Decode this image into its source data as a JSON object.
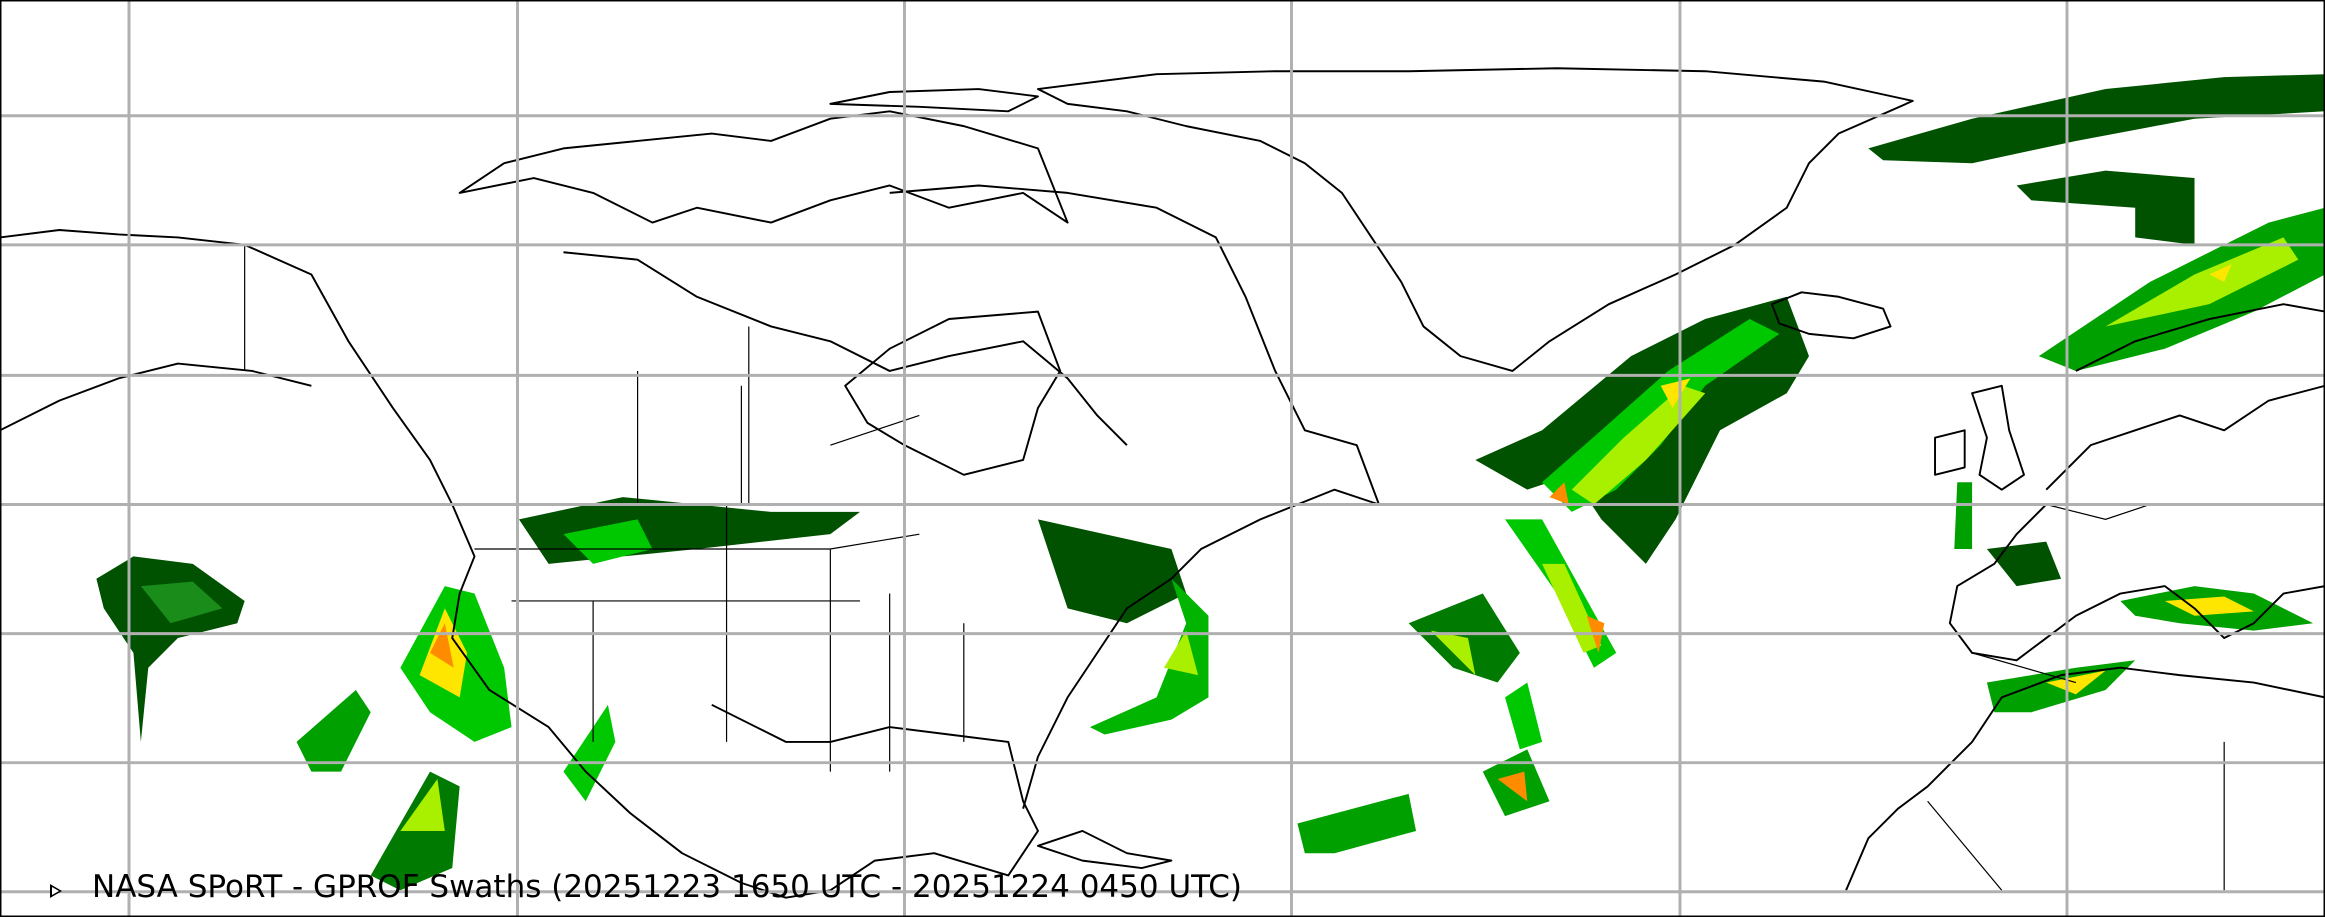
{
  "map": {
    "caption": "NASA SPoRT - GPROF Swaths (20251223 1650 UTC - 20251224 0450 UTC)",
    "caption_icon": "play-triangle-icon",
    "colors": {
      "background": "#ffffff",
      "gridline": "#b0b0b0",
      "coastline": "#000000",
      "precip_light": "#005200",
      "precip_moderate": "#00c800",
      "precip_heavy": "#a8f000",
      "precip_very_heavy": "#ffe600",
      "precip_extreme": "#ff8c00"
    }
  }
}
